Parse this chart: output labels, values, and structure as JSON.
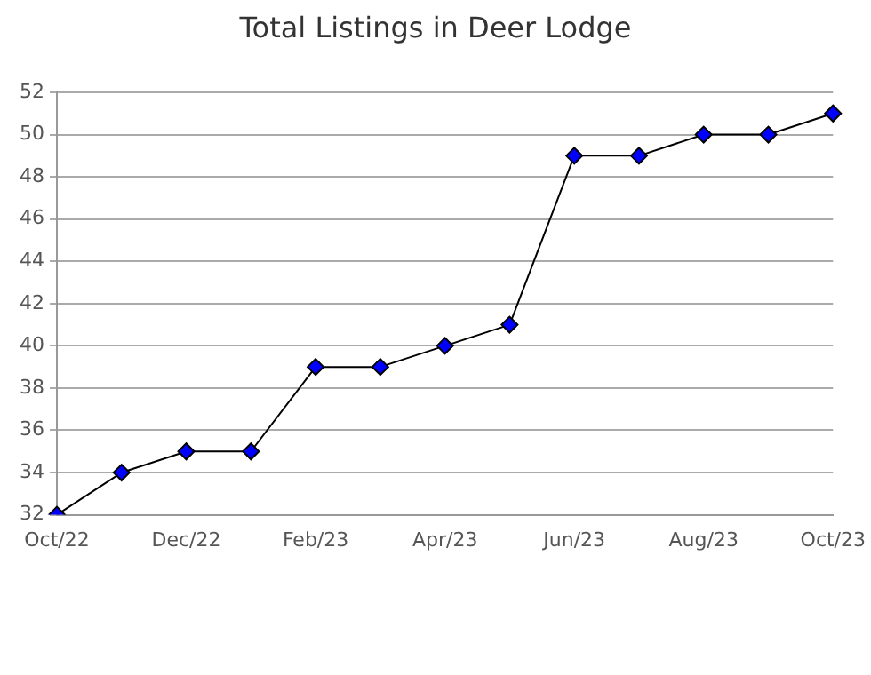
{
  "chart_data": {
    "type": "line",
    "title": "Total Listings in Deer Lodge",
    "categories": [
      "Oct/22",
      null,
      "Dec/22",
      null,
      "Feb/23",
      null,
      "Apr/23",
      null,
      "Jun/23",
      null,
      "Aug/23",
      null,
      "Oct/23"
    ],
    "series": [
      {
        "color": "#0000ff",
        "values": [
          32,
          34,
          35,
          35,
          39,
          39,
          40,
          41,
          49,
          49,
          50,
          50,
          51
        ]
      }
    ],
    "ylim": [
      32,
      52
    ],
    "yticks": [
      32,
      34,
      36,
      38,
      40,
      42,
      44,
      46,
      48,
      50,
      52
    ],
    "grid": "y",
    "legend": false,
    "marker": "diamond",
    "line_style": "solid"
  }
}
